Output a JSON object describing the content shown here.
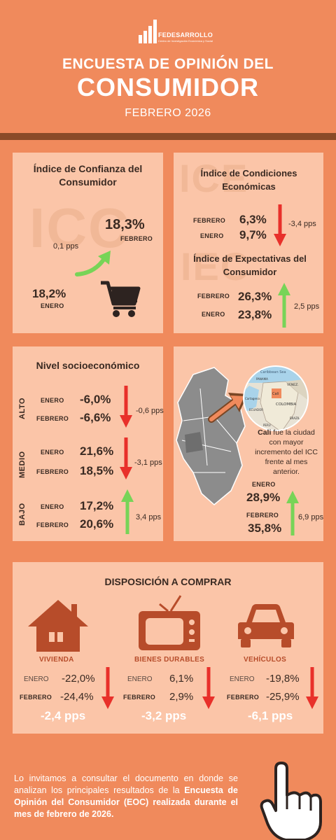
{
  "header": {
    "logo_name": "FEDESARROLLO",
    "logo_sub": "Centro de Investigación Económica y Social",
    "title_line1": "ENCUESTA DE OPINIÓN DEL",
    "title_line2": "CONSUMIDOR",
    "subtitle": "FEBRERO 2026"
  },
  "icc": {
    "title": "Índice de Confianza del Consumidor",
    "watermark": "ICC",
    "feb_value": "18,3%",
    "feb_label": "FEBRERO",
    "change": "0,1 pps",
    "jan_value": "18,2%",
    "jan_label": "ENERO",
    "icon": "shopping-cart-icon"
  },
  "ice": {
    "title": "Índice de Condiciones Económicas",
    "watermark": "ICE",
    "feb_label": "FEBRERO",
    "feb_value": "6,3%",
    "jan_label": "ENERO",
    "jan_value": "9,7%",
    "change": "-3,4 pps"
  },
  "iec": {
    "title": "Índice de Expectativas del Consumidor",
    "watermark": "IEC",
    "feb_label": "FEBRERO",
    "feb_value": "26,3%",
    "jan_label": "ENERO",
    "jan_value": "23,8%",
    "change": "2,5 pps"
  },
  "nse": {
    "title": "Nivel socioeconómico",
    "alto": {
      "label": "ALTO",
      "jan_label": "ENERO",
      "jan_value": "-6,0%",
      "feb_label": "FEBRERO",
      "feb_value": "-6,6%",
      "change": "-0,6 pps"
    },
    "medio": {
      "label": "MEDIO",
      "jan_label": "ENERO",
      "jan_value": "21,6%",
      "feb_label": "FEBRERO",
      "feb_value": "18,5%",
      "change": "-3,1 pps"
    },
    "bajo": {
      "label": "BAJO",
      "jan_label": "ENERO",
      "jan_value": "17,2%",
      "feb_label": "FEBRERO",
      "feb_value": "20,6%",
      "change": "3,4 pps"
    }
  },
  "city": {
    "text_bold": "Cali",
    "text_rest": " fue la ciudad con mayor incremento del ICC frente al mes anterior.",
    "map_labels": [
      "Caribbean Sea",
      "PANAMA",
      "VENEZ.",
      "Cali",
      "COLOMBIA",
      "Cartagena",
      "ECUADOR",
      "PERU",
      "BRAZIL"
    ],
    "jan_label": "ENERO",
    "jan_value": "28,9%",
    "feb_label": "FEBRERO",
    "feb_value": "35,8%",
    "change": "6,9 pps"
  },
  "purchase": {
    "title": "DISPOSICIÓN A COMPRAR",
    "items": [
      {
        "label": "VIVIENDA",
        "icon": "house-icon",
        "jan_label": "ENERO",
        "jan_value": "-22,0%",
        "feb_label": "FEBRERO",
        "feb_value": "-24,4%",
        "change": "-2,4 pps"
      },
      {
        "label": "BIENES DURABLES",
        "icon": "tv-icon",
        "jan_label": "ENERO",
        "jan_value": "6,1%",
        "feb_label": "FEBRERO",
        "feb_value": "2,9%",
        "change": "-3,2 pps"
      },
      {
        "label": "VEHÍCULOS",
        "icon": "car-icon",
        "jan_label": "ENERO",
        "jan_value": "-19,8%",
        "feb_label": "FEBRERO",
        "feb_value": "-25,9%",
        "change": "-6,1 pps"
      }
    ]
  },
  "footer": {
    "text_pre": "Lo invitamos a consultar el documento en donde se analizan los principales resultados de la ",
    "text_bold": "Encuesta de Opinión del Consumidor (EOC) realizada durante el mes de febrero de 2026.",
    "icon": "pointing-hand-icon"
  },
  "colors": {
    "background": "#f08a5c",
    "panel": "#fbc5a8",
    "band": "#8a4a28",
    "up": "#77d457",
    "down": "#e8302a",
    "icon": "#b74c2a"
  }
}
